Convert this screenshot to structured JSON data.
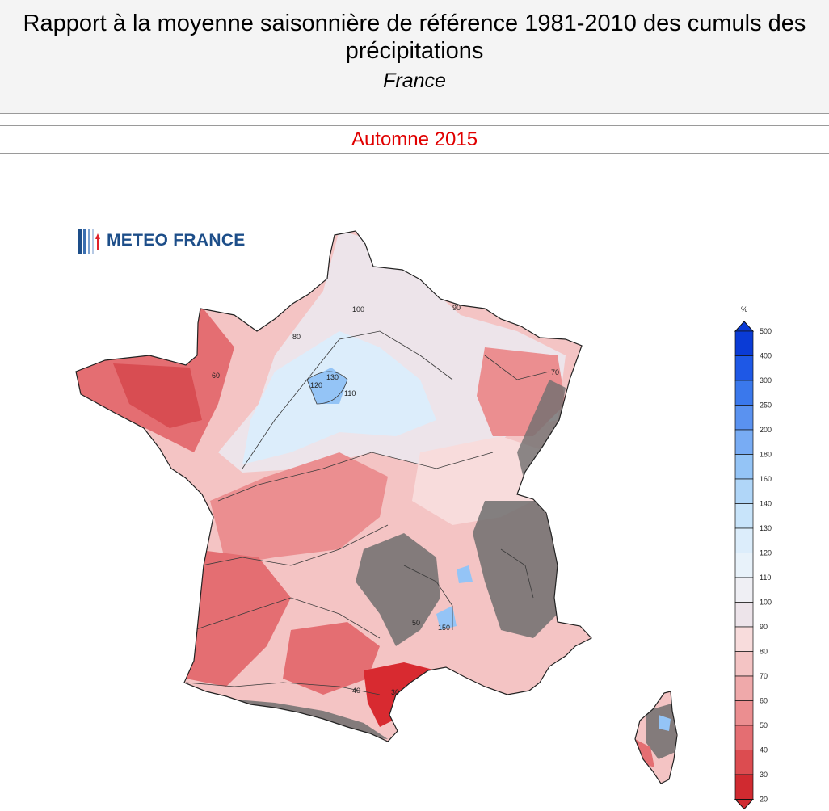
{
  "header": {
    "title": "Rapport à la moyenne saisonnière de référence 1981-2010 des cumuls des précipitations",
    "subtitle": "France"
  },
  "period": {
    "label": "Automne 2015",
    "color": "#e00000"
  },
  "logo": {
    "text": "METEO FRANCE",
    "color": "#1d4e89"
  },
  "legend": {
    "unit": "%",
    "ticks": [
      "500",
      "400",
      "300",
      "250",
      "200",
      "180",
      "160",
      "140",
      "130",
      "120",
      "110",
      "100",
      "90",
      "80",
      "70",
      "60",
      "50",
      "40",
      "30",
      "20"
    ],
    "colors": [
      "#0a3bd6",
      "#1e58e6",
      "#3a78ec",
      "#5a92f0",
      "#78acf4",
      "#94c4f6",
      "#b0d6f8",
      "#c8e4fa",
      "#dcedfb",
      "#e8f2fa",
      "#efeff4",
      "#ede4ea",
      "#f8dcdc",
      "#f4c4c4",
      "#efa9aa",
      "#eb8e90",
      "#e46e72",
      "#dc4c50",
      "#d02a30"
    ]
  },
  "contour_labels": [
    "100",
    "90",
    "80",
    "70",
    "60",
    "110",
    "120",
    "130",
    "50",
    "40",
    "30",
    "150"
  ],
  "map_colors": {
    "dry_strong": "#d82a30",
    "dry": "#e46e72",
    "dry_mid": "#eb8e90",
    "dry_light": "#f4c4c4",
    "near_normal": "#f8dcdc",
    "normal": "#ede4ea",
    "wet": "#dcedfb",
    "wet_strong": "#94c4f6",
    "relief": "#6f6f6f"
  }
}
